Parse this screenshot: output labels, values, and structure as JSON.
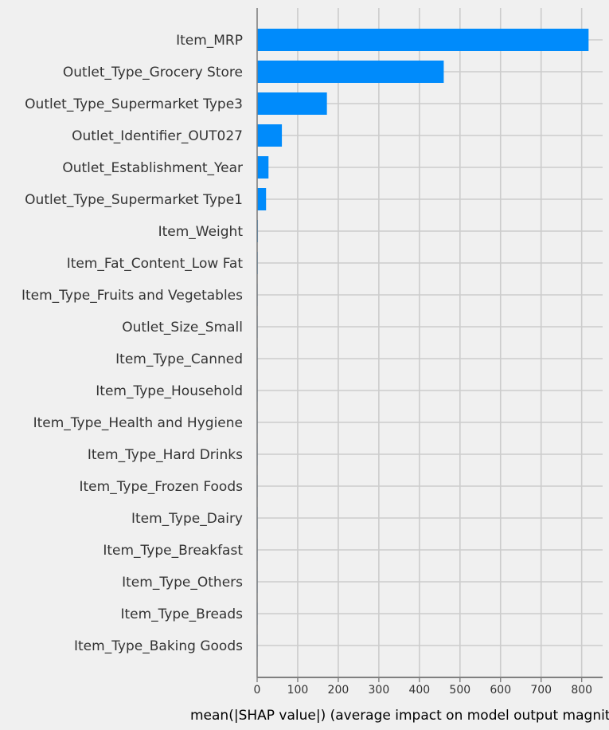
{
  "chart_data": {
    "type": "bar",
    "orientation": "horizontal",
    "categories": [
      "Item_MRP",
      "Outlet_Type_Grocery Store",
      "Outlet_Type_Supermarket Type3",
      "Outlet_Identifier_OUT027",
      "Outlet_Establishment_Year",
      "Outlet_Type_Supermarket Type1",
      "Item_Weight",
      "Item_Fat_Content_Low Fat",
      "Item_Type_Fruits and Vegetables",
      "Outlet_Size_Small",
      "Item_Type_Canned",
      "Item_Type_Household",
      "Item_Type_Health and Hygiene",
      "Item_Type_Hard Drinks",
      "Item_Type_Frozen Foods",
      "Item_Type_Dairy",
      "Item_Type_Breakfast",
      "Item_Type_Others",
      "Item_Type_Breads",
      "Item_Type_Baking Goods"
    ],
    "values": [
      817,
      460,
      172,
      61,
      28,
      22,
      2,
      1.5,
      0.4,
      0.3,
      0.2,
      0.2,
      0.2,
      0.2,
      0.1,
      0.1,
      0.1,
      0.1,
      0.1,
      0.1
    ],
    "xlabel": "mean(|SHAP value|) (average impact on model output magnitude)",
    "xticks": [
      0,
      100,
      200,
      300,
      400,
      500,
      600,
      700,
      800
    ],
    "xlim": [
      0,
      858
    ],
    "grid": true,
    "bar_color": "#008bfb",
    "background_color": "#f0f0f0",
    "grid_color": "#cccccc",
    "axis_color": "#808080"
  }
}
